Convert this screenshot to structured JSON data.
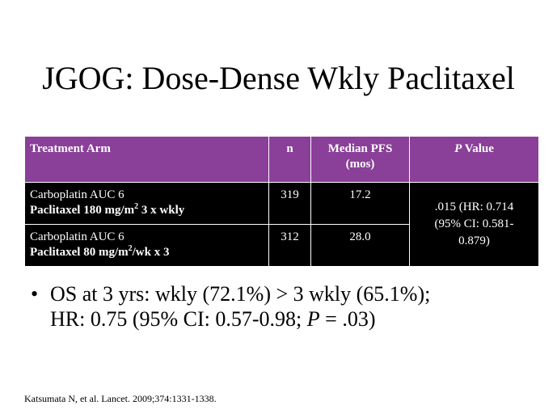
{
  "slide": {
    "title": "JGOG: Dose-Dense Wkly Paclitaxel"
  },
  "table": {
    "header": {
      "arm": "Treatment Arm",
      "n": "n",
      "pfs_line1": "Median PFS",
      "pfs_line2": "(mos)",
      "p_italic": "P",
      "p_rest": " Value"
    },
    "rows": [
      {
        "line1": "Carboplatin AUC 6",
        "line2_pre": "Paclitaxel 180 mg/m",
        "line2_sup": "2",
        "line2_post": " 3 x wkly",
        "n": "319",
        "pfs": "17.2"
      },
      {
        "line1": "Carboplatin AUC 6",
        "line2_pre": "Paclitaxel 80 mg/m",
        "line2_sup": "2",
        "line2_post": "/wk x 3",
        "n": "312",
        "pfs": "28.0"
      }
    ],
    "p_value": {
      "line1": ".015 (HR: 0.714",
      "line2": "(95% CI: 0.581-",
      "line3": "0.879)"
    }
  },
  "bullet": {
    "marker": "•",
    "line1": "OS at 3 yrs: wkly (72.1%) > 3 wkly (65.1%);",
    "line2_pre": "HR: 0.75 (95% CI: 0.57-0.98; ",
    "line2_italic": "P",
    "line2_post": " = .03)"
  },
  "citation": "Katsumata N, et al. Lancet. 2009;374:1331-1338."
}
